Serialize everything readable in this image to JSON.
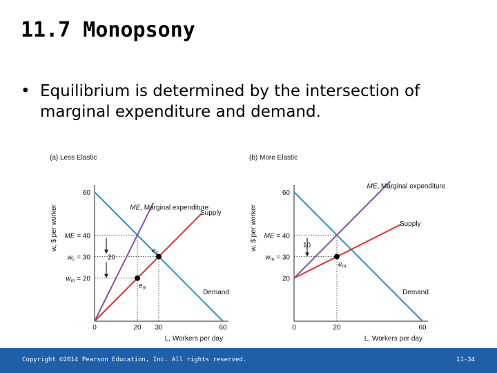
{
  "slide": {
    "title": "11.7  Monopsony",
    "bullet": "Equilibrium is determined by the intersection of marginal expenditure and demand."
  },
  "footer": {
    "copyright": "Copyright ©2014 Pearson Education, Inc. All rights reserved.",
    "page": "11-34"
  },
  "colors": {
    "demand": "#2b8fd6",
    "supply": "#e0302a",
    "marginal_expenditure": "#8a4fa8",
    "footer": "#1f5fa8"
  },
  "chart_data": [
    {
      "type": "line",
      "title": "(a) Less Elastic",
      "xlabel": "L, Workers per day",
      "ylabel": "w, $ per worker",
      "xlim": [
        0,
        60
      ],
      "ylim": [
        0,
        60
      ],
      "x_ticks": [
        "0",
        "20",
        "30",
        "60"
      ],
      "y_ticks": [
        {
          "value": 60,
          "label": "60"
        },
        {
          "value": 40,
          "label": "ME = 40"
        },
        {
          "value": 30,
          "label": "wc = 30"
        },
        {
          "value": 20,
          "label": "wm = 20"
        }
      ],
      "series": [
        {
          "name": "Demand",
          "points": [
            [
              0,
              60
            ],
            [
              60,
              0
            ]
          ]
        },
        {
          "name": "Supply",
          "points": [
            [
              0,
              0
            ],
            [
              50,
              50
            ]
          ]
        },
        {
          "name": "ME, Marginal expenditure",
          "points": [
            [
              0,
              0
            ],
            [
              27.5,
              55
            ]
          ]
        }
      ],
      "points": [
        {
          "name": "ec",
          "x": 30,
          "y": 30
        },
        {
          "name": "em",
          "x": 20,
          "y": 20
        }
      ],
      "annotations": [
        "20"
      ]
    },
    {
      "type": "line",
      "title": "(b) More Elastic",
      "xlabel": "L, Workers per day",
      "ylabel": "w, $ per worker",
      "xlim": [
        0,
        60
      ],
      "ylim": [
        0,
        60
      ],
      "x_ticks": [
        "0",
        "20",
        "60"
      ],
      "y_ticks": [
        {
          "value": 60,
          "label": "60"
        },
        {
          "value": 40,
          "label": "ME = 40"
        },
        {
          "value": 30,
          "label": "wm = 30"
        },
        {
          "value": 20,
          "label": "20"
        }
      ],
      "series": [
        {
          "name": "Demand",
          "points": [
            [
              0,
              60
            ],
            [
              60,
              0
            ]
          ]
        },
        {
          "name": "Supply",
          "points": [
            [
              0,
              20
            ],
            [
              50,
              45
            ]
          ]
        },
        {
          "name": "ME, Marginal expenditure",
          "points": [
            [
              0,
              20
            ],
            [
              45,
              65
            ]
          ]
        }
      ],
      "points": [
        {
          "name": "em",
          "x": 20,
          "y": 30
        }
      ],
      "annotations": [
        "10"
      ]
    }
  ]
}
